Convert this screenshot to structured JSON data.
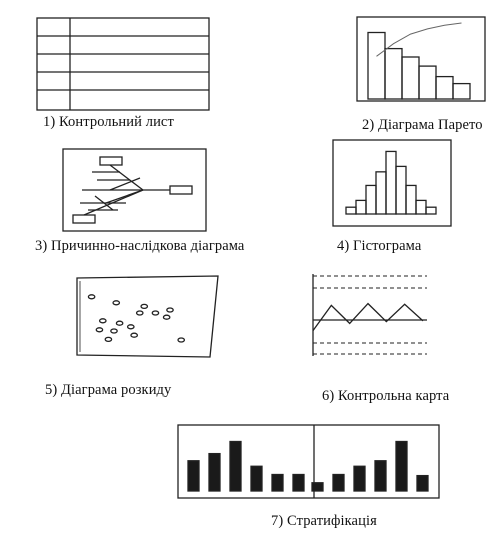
{
  "captions": {
    "check_sheet": "1) Контрольний лист",
    "pareto": "2) Діаграма Парето",
    "cause_effect": "3) Причинно-наслідкова діаграма",
    "histogram": "4) Гістограма",
    "scatter": "5) Діаграма розкиду",
    "control_chart": "6) Контрольна карта",
    "stratification": "7) Стратифікація"
  },
  "figures": {
    "pareto_bars": [
      0.95,
      0.72,
      0.6,
      0.47,
      0.32,
      0.22
    ],
    "pareto_cumulative": [
      0.55,
      0.72,
      0.85,
      0.92,
      0.97,
      1.0
    ],
    "histogram_bars": [
      0.1,
      0.2,
      0.42,
      0.62,
      0.92,
      0.7,
      0.42,
      0.2,
      0.1
    ],
    "control_chart_line": [
      0.15,
      0.85,
      0.35,
      0.9,
      0.4,
      0.88,
      0.42
    ],
    "stratification_left": [
      0.55,
      0.68,
      0.9,
      0.45,
      0.3,
      0.3
    ],
    "stratification_right": [
      0.15,
      0.3,
      0.45,
      0.55,
      0.9,
      0.28
    ],
    "scatter_points": [
      [
        0.05,
        0.82
      ],
      [
        0.27,
        0.72
      ],
      [
        0.52,
        0.66
      ],
      [
        0.48,
        0.55
      ],
      [
        0.62,
        0.55
      ],
      [
        0.75,
        0.6
      ],
      [
        0.72,
        0.48
      ],
      [
        0.15,
        0.42
      ],
      [
        0.3,
        0.38
      ],
      [
        0.4,
        0.32
      ],
      [
        0.12,
        0.27
      ],
      [
        0.25,
        0.25
      ],
      [
        0.43,
        0.18
      ],
      [
        0.85,
        0.1
      ],
      [
        0.2,
        0.11
      ]
    ]
  }
}
